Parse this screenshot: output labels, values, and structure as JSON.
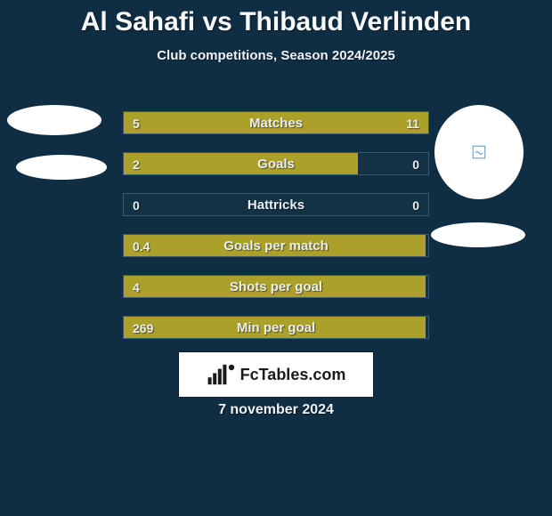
{
  "colors": {
    "background": "#102e43",
    "bar_border": "#3a5a70",
    "fill_left": "#aaa02a",
    "fill_right": "#aaa02a",
    "text": "#eef2f6",
    "badge_bg": "#ffffff",
    "badge_text": "#1a1a1a"
  },
  "title": {
    "player1": "Al Sahafi",
    "vs": "vs",
    "player2": "Thibaud Verlinden"
  },
  "subtitle": "Club competitions, Season 2024/2025",
  "stats": [
    {
      "label": "Matches",
      "left_val": "5",
      "right_val": "11",
      "left_pct": 28,
      "right_pct": 72
    },
    {
      "label": "Goals",
      "left_val": "2",
      "right_val": "0",
      "left_pct": 77,
      "right_pct": 0
    },
    {
      "label": "Hattricks",
      "left_val": "0",
      "right_val": "0",
      "left_pct": 0,
      "right_pct": 0
    },
    {
      "label": "Goals per match",
      "left_val": "0.4",
      "right_val": "",
      "left_pct": 99,
      "right_pct": 0
    },
    {
      "label": "Shots per goal",
      "left_val": "4",
      "right_val": "",
      "left_pct": 99,
      "right_pct": 0
    },
    {
      "label": "Min per goal",
      "left_val": "269",
      "right_val": "",
      "left_pct": 99,
      "right_pct": 0
    }
  ],
  "badge_text": "FcTables.com",
  "date": "7 november 2024",
  "typography": {
    "title_fontsize": 30,
    "subtitle_fontsize": 15,
    "bar_label_fontsize": 15,
    "value_fontsize": 14,
    "date_fontsize": 16
  }
}
